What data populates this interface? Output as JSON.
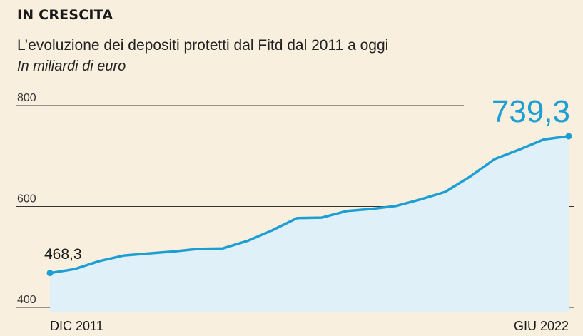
{
  "header": {
    "title": "IN CRESCITA",
    "subtitle": "L’evoluzione dei depositi protetti dal Fitd dal 2011 a oggi",
    "unit": "In miliardi di euro"
  },
  "colors": {
    "line": "#1e9fd3",
    "area": "#dff0f8",
    "background": "#f8efdf",
    "grid": "#333333"
  },
  "chart_data": {
    "type": "area",
    "x": [
      "DIC 2011",
      "",
      "",
      "",
      "",
      "",
      "",
      "",
      "",
      "",
      "",
      "",
      "",
      "",
      "",
      "",
      "",
      "",
      "",
      "",
      "",
      ""
    ],
    "values": [
      468.3,
      476,
      492,
      503,
      507,
      511,
      516,
      517,
      532,
      553,
      577,
      578,
      591,
      595,
      601,
      614,
      629,
      659,
      694,
      713,
      733,
      739.3
    ],
    "ylim": [
      400,
      800
    ],
    "yticks": [
      400,
      600,
      800
    ],
    "xtick_labels": [
      "DIC 2011",
      "GIU 2022"
    ],
    "value_labels": {
      "start": "468,3",
      "end": "739,3"
    },
    "grid": true
  }
}
